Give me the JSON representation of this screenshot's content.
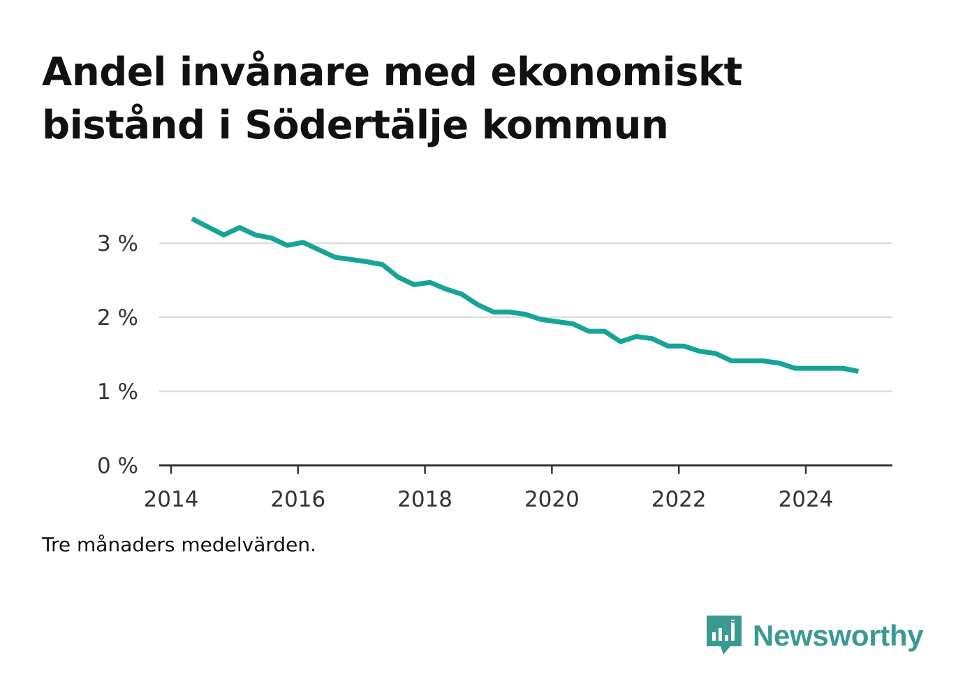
{
  "header": {
    "title": "Andel invånare med ekonomiskt bistånd i Södertälje kommun"
  },
  "footer": {
    "note": "Tre månaders medelvärden.",
    "brand": "Newsworthy",
    "brand_icon": "bar-chart-speech-bubble-icon"
  },
  "colors": {
    "line": "#17a398",
    "grid": "#dddddd",
    "axis": "#333333",
    "brand": "#3a9a92"
  },
  "chart_data": {
    "type": "line",
    "title": "Andel invånare med ekonomiskt bistånd i Södertälje kommun",
    "xlabel": "",
    "ylabel": "",
    "xlim": [
      2014.0,
      2025.4
    ],
    "ylim": [
      0,
      3.6
    ],
    "x_ticks": [
      2014,
      2016,
      2018,
      2020,
      2022,
      2024
    ],
    "x_tick_labels": [
      "2014",
      "2016",
      "2018",
      "2020",
      "2022",
      "2024"
    ],
    "y_ticks": [
      0,
      1,
      2,
      3
    ],
    "y_tick_labels": [
      "0 %",
      "1 %",
      "2 %",
      "3 %"
    ],
    "grid": "horizontal",
    "legend": "none",
    "series": [
      {
        "x": [
          2014.33,
          2014.58,
          2014.83,
          2015.08,
          2015.33,
          2015.58,
          2015.83,
          2016.08,
          2016.33,
          2016.58,
          2016.83,
          2017.08,
          2017.33,
          2017.58,
          2017.83,
          2018.08,
          2018.33,
          2018.58,
          2018.83,
          2019.08,
          2019.33,
          2019.58,
          2019.83,
          2020.08,
          2020.33,
          2020.58,
          2020.83,
          2021.08,
          2021.33,
          2021.58,
          2021.83,
          2022.08,
          2022.33,
          2022.58,
          2022.83,
          2023.08,
          2023.33,
          2023.58,
          2023.83,
          2024.08,
          2024.33,
          2024.58,
          2024.83
        ],
        "values": [
          3.33,
          3.22,
          3.11,
          3.21,
          3.11,
          3.07,
          2.97,
          3.01,
          2.91,
          2.81,
          2.78,
          2.75,
          2.71,
          2.54,
          2.44,
          2.47,
          2.38,
          2.31,
          2.17,
          2.07,
          2.07,
          2.04,
          1.97,
          1.94,
          1.91,
          1.81,
          1.81,
          1.67,
          1.74,
          1.71,
          1.61,
          1.61,
          1.54,
          1.51,
          1.41,
          1.41,
          1.41,
          1.38,
          1.31,
          1.31,
          1.31,
          1.31,
          1.27
        ]
      }
    ]
  }
}
